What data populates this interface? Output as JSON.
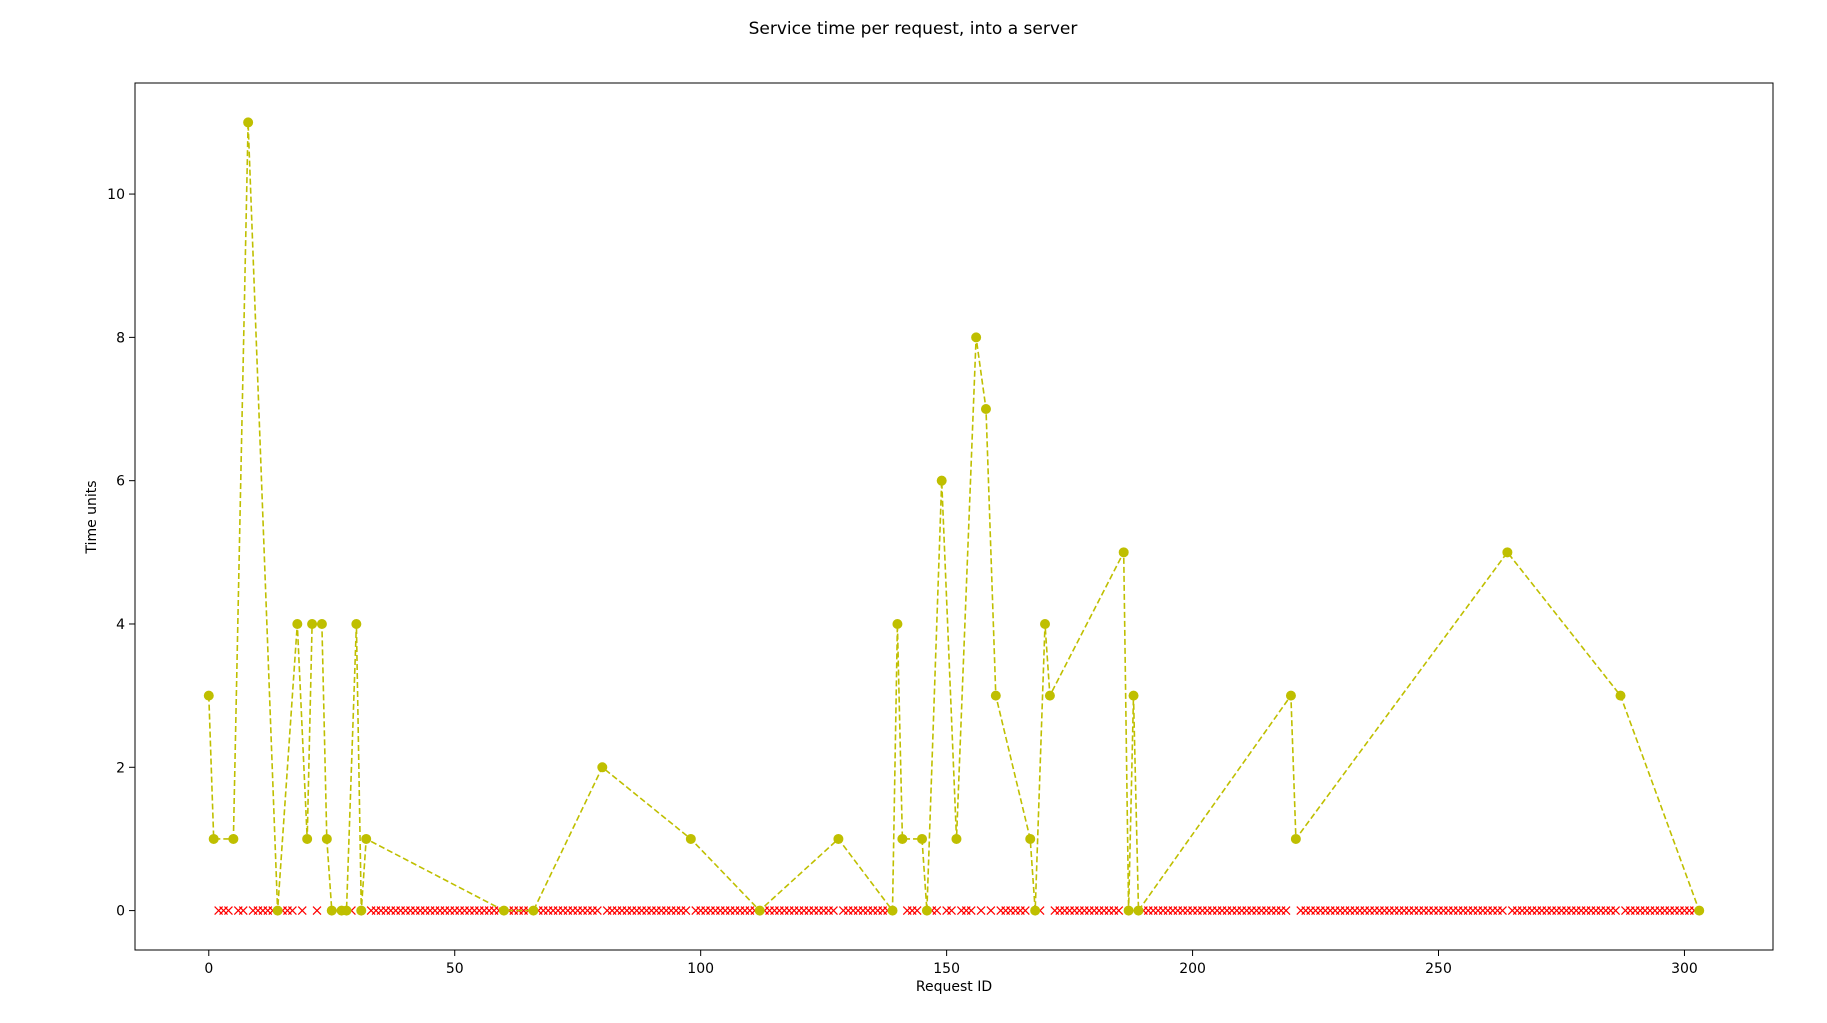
{
  "chart_data": {
    "type": "line",
    "title": "Service time per request, into a server",
    "xlabel": "Request ID",
    "ylabel": "Time units",
    "xlim": [
      -15,
      318
    ],
    "ylim": [
      -0.55,
      11.55
    ],
    "xticks": [
      0,
      50,
      100,
      150,
      200,
      250,
      300
    ],
    "yticks": [
      0,
      2,
      4,
      6,
      8,
      10
    ],
    "grid": false,
    "legend": "none",
    "series": [
      {
        "style": "dashed line with circle markers",
        "color": "#bfbf00",
        "x": [
          0,
          1,
          5,
          8,
          14,
          18,
          20,
          21,
          23,
          24,
          25,
          27,
          28,
          30,
          31,
          32,
          60,
          66,
          80,
          98,
          112,
          128,
          139,
          140,
          141,
          145,
          146,
          149,
          152,
          156,
          158,
          160,
          167,
          168,
          170,
          171,
          186,
          187,
          188,
          189,
          220,
          221,
          264,
          287,
          303
        ],
        "y": [
          3,
          1,
          1,
          11,
          0,
          4,
          1,
          4,
          4,
          1,
          0,
          0,
          0,
          4,
          0,
          1,
          0,
          0,
          2,
          1,
          0,
          1,
          0,
          4,
          1,
          1,
          0,
          6,
          1,
          8,
          7,
          3,
          1,
          0,
          4,
          3,
          5,
          0,
          3,
          0,
          3,
          1,
          5,
          3,
          0
        ]
      },
      {
        "style": "x markers",
        "color": "#ff0000",
        "x": [
          2,
          3,
          4,
          6,
          7,
          9,
          10,
          11,
          12,
          13,
          15,
          16,
          17,
          19,
          22,
          26,
          29,
          33,
          34,
          35,
          36,
          37,
          38,
          39,
          40,
          41,
          42,
          43,
          44,
          45,
          46,
          47,
          48,
          49,
          50,
          51,
          52,
          53,
          54,
          55,
          56,
          57,
          58,
          59,
          61,
          62,
          63,
          64,
          65,
          67,
          68,
          69,
          70,
          71,
          72,
          73,
          74,
          75,
          76,
          77,
          78,
          79,
          81,
          82,
          83,
          84,
          85,
          86,
          87,
          88,
          89,
          90,
          91,
          92,
          93,
          94,
          95,
          96,
          97,
          99,
          100,
          101,
          102,
          103,
          104,
          105,
          106,
          107,
          108,
          109,
          110,
          111,
          113,
          114,
          115,
          116,
          117,
          118,
          119,
          120,
          121,
          122,
          123,
          124,
          125,
          126,
          127,
          129,
          130,
          131,
          132,
          133,
          134,
          135,
          136,
          137,
          138,
          142,
          143,
          144,
          147,
          148,
          150,
          151,
          153,
          154,
          155,
          157,
          159,
          161,
          162,
          163,
          164,
          165,
          166,
          169,
          172,
          173,
          174,
          175,
          176,
          177,
          178,
          179,
          180,
          181,
          182,
          183,
          184,
          185,
          190,
          191,
          192,
          193,
          194,
          195,
          196,
          197,
          198,
          199,
          200,
          201,
          202,
          203,
          204,
          205,
          206,
          207,
          208,
          209,
          210,
          211,
          212,
          213,
          214,
          215,
          216,
          217,
          218,
          219,
          222,
          223,
          224,
          225,
          226,
          227,
          228,
          229,
          230,
          231,
          232,
          233,
          234,
          235,
          236,
          237,
          238,
          239,
          240,
          241,
          242,
          243,
          244,
          245,
          246,
          247,
          248,
          249,
          250,
          251,
          252,
          253,
          254,
          255,
          256,
          257,
          258,
          259,
          260,
          261,
          262,
          263,
          265,
          266,
          267,
          268,
          269,
          270,
          271,
          272,
          273,
          274,
          275,
          276,
          277,
          278,
          279,
          280,
          281,
          282,
          283,
          284,
          285,
          286,
          288,
          289,
          290,
          291,
          292,
          293,
          294,
          295,
          296,
          297,
          298,
          299,
          300,
          301,
          302
        ],
        "y_constant": 0
      }
    ]
  }
}
